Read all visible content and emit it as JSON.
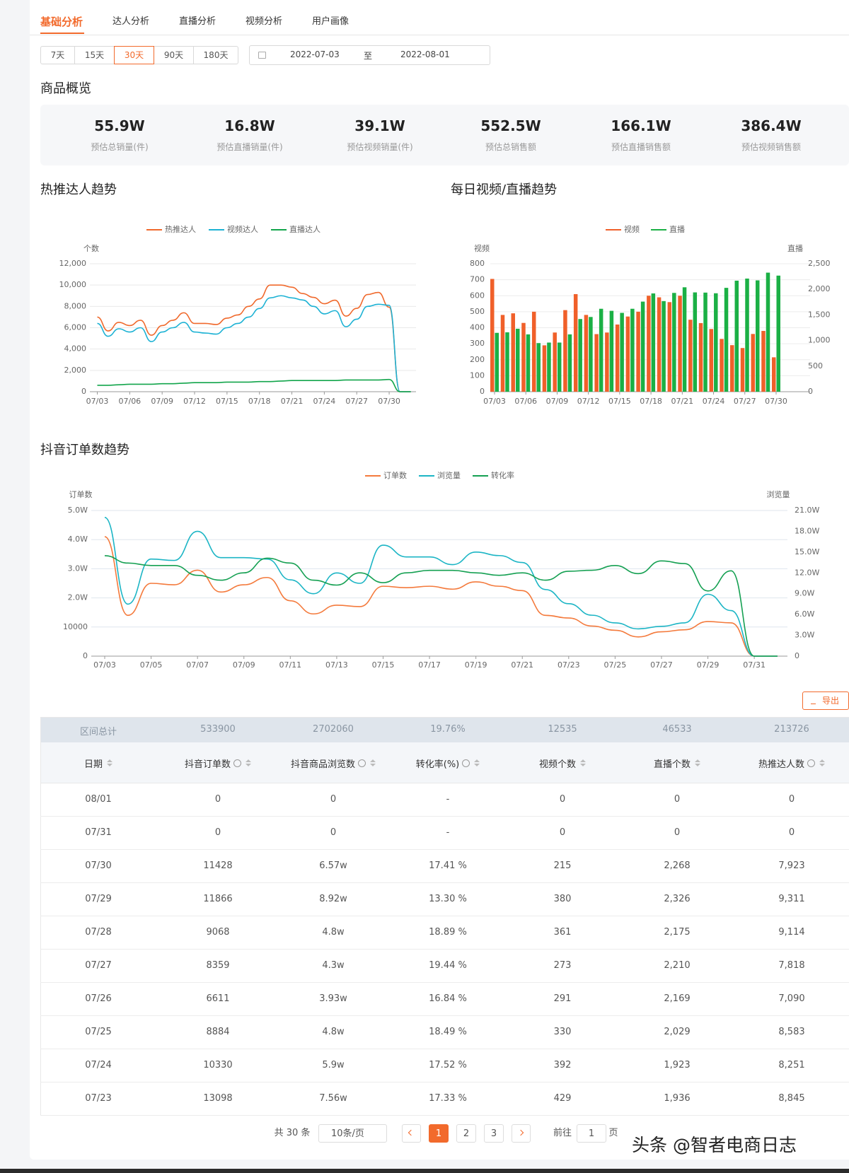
{
  "tabs": [
    "基础分析",
    "达人分析",
    "直播分析",
    "视频分析",
    "用户画像"
  ],
  "active_tab": 0,
  "range_buttons": [
    "7天",
    "15天",
    "30天",
    "90天",
    "180天"
  ],
  "active_range": 2,
  "date_range": {
    "start": "2022-07-03",
    "separator": "至",
    "end": "2022-08-01"
  },
  "overview": {
    "title": "商品概览",
    "items": [
      {
        "value": "55.9W",
        "label": "预估总销量(件)"
      },
      {
        "value": "16.8W",
        "label": "预估直播销量(件)"
      },
      {
        "value": "39.1W",
        "label": "预估视频销量(件)"
      },
      {
        "value": "552.5W",
        "label": "预估总销售额"
      },
      {
        "value": "166.1W",
        "label": "预估直播销售额"
      },
      {
        "value": "386.4W",
        "label": "预估视频销售额"
      }
    ]
  },
  "chart_data": [
    {
      "type": "line",
      "title": "热推达人趋势",
      "y_label": "个数",
      "categories": [
        "07/03",
        null,
        null,
        "07/06",
        null,
        null,
        "07/09",
        null,
        null,
        "07/12",
        null,
        null,
        "07/15",
        null,
        null,
        "07/18",
        null,
        null,
        "07/21",
        null,
        null,
        "07/24",
        null,
        null,
        "07/27",
        null,
        null,
        "07/30",
        null,
        null
      ],
      "series": [
        {
          "name": "热推达人",
          "color": "#f0692c",
          "values": [
            7000,
            5700,
            6500,
            6200,
            6700,
            5300,
            6200,
            6700,
            7400,
            6400,
            6400,
            6300,
            6900,
            7200,
            8000,
            8700,
            10000,
            10000,
            9800,
            9200,
            8845,
            8251,
            8583,
            7090,
            7818,
            9114,
            9311,
            7923,
            0,
            0
          ]
        },
        {
          "name": "视频达人",
          "color": "#1db2d4",
          "values": [
            6400,
            5200,
            5900,
            5600,
            6000,
            4700,
            5600,
            6000,
            6500,
            5600,
            5500,
            5400,
            6000,
            6400,
            7000,
            7800,
            8800,
            9000,
            8800,
            8600,
            8000,
            7300,
            7600,
            6100,
            6800,
            8000,
            8200,
            8100,
            0,
            0
          ]
        },
        {
          "name": "直播达人",
          "color": "#12a54b",
          "values": [
            600,
            600,
            650,
            700,
            700,
            700,
            750,
            750,
            800,
            850,
            850,
            850,
            900,
            900,
            900,
            950,
            950,
            1000,
            1050,
            1050,
            1050,
            1050,
            1050,
            1100,
            1100,
            1100,
            1100,
            1150,
            0,
            0
          ]
        }
      ],
      "ylim": [
        0,
        12000
      ],
      "yticks": [
        0,
        {
          "value": 2000,
          "label": "2,000"
        },
        {
          "value": 4000,
          "label": "4,000"
        },
        {
          "value": 6000,
          "label": "6,000"
        },
        {
          "value": 8000,
          "label": "8,000"
        },
        {
          "value": 10000,
          "label": "10,000"
        },
        {
          "value": 12000,
          "label": "12,000"
        }
      ],
      "grid": true,
      "legend": "top"
    },
    {
      "type": "bar",
      "title": "每日视频/直播趋势",
      "y_label": "视频",
      "y2_label": "直播",
      "categories": [
        "07/03",
        null,
        null,
        "07/06",
        null,
        null,
        "07/09",
        null,
        null,
        "07/12",
        null,
        null,
        "07/15",
        null,
        null,
        "07/18",
        null,
        null,
        "07/21",
        null,
        null,
        "07/24",
        null,
        null,
        "07/27",
        null,
        null,
        "07/30"
      ],
      "series": [
        {
          "name": "视频",
          "color": "#f0602a",
          "values": [
            705,
            480,
            490,
            430,
            500,
            290,
            370,
            510,
            610,
            480,
            360,
            370,
            420,
            470,
            500,
            600,
            590,
            560,
            600,
            450,
            429,
            392,
            330,
            291,
            273,
            361,
            380,
            215
          ]
        },
        {
          "name": "直播",
          "color": "#1bb045",
          "axis": "y2",
          "values": [
            1150,
            1160,
            1230,
            1120,
            950,
            960,
            960,
            1120,
            1420,
            1460,
            1620,
            1580,
            1540,
            1620,
            1760,
            1920,
            1770,
            1930,
            2040,
            1940,
            1936,
            1923,
            2029,
            2169,
            2210,
            2175,
            2326,
            2268
          ]
        }
      ],
      "ylim": [
        0,
        800
      ],
      "yticks": [
        0,
        100,
        200,
        300,
        400,
        500,
        600,
        700,
        800
      ],
      "y2lim": [
        0,
        2500
      ],
      "y2ticks": [
        0,
        500,
        {
          "value": 1000,
          "label": "1,000"
        },
        {
          "value": 1500,
          "label": "1,500"
        },
        {
          "value": 2000,
          "label": "2,000"
        },
        {
          "value": 2500,
          "label": "2,500"
        }
      ],
      "grid": true,
      "legend": "top"
    },
    {
      "type": "line",
      "title": "抖音订单数趋势",
      "y_label": "订单数",
      "y2_label": "浏览量",
      "categories": [
        "07/03",
        null,
        "07/05",
        null,
        "07/07",
        null,
        "07/09",
        null,
        "07/11",
        null,
        "07/13",
        null,
        "07/15",
        null,
        "07/17",
        null,
        "07/19",
        null,
        "07/21",
        null,
        "07/23",
        null,
        "07/25",
        null,
        "07/27",
        null,
        "07/29",
        null,
        "07/31",
        null
      ],
      "series": [
        {
          "name": "订单数",
          "color": "#f47a3c",
          "values": [
            41000,
            14000,
            25000,
            24500,
            29500,
            22000,
            24500,
            27000,
            19000,
            14500,
            17500,
            17000,
            24000,
            23500,
            24000,
            23000,
            25500,
            24000,
            22500,
            14000,
            13098,
            10330,
            8884,
            6611,
            8359,
            9068,
            11866,
            11428,
            0,
            0
          ]
        },
        {
          "name": "浏览量",
          "color": "#1cb5c5",
          "axis": "y2",
          "values": [
            200000,
            75000,
            140000,
            138000,
            180000,
            142000,
            142000,
            140000,
            110000,
            90000,
            120000,
            105000,
            160000,
            143000,
            143000,
            132000,
            150000,
            145000,
            135000,
            96000,
            75600,
            59000,
            48000,
            39300,
            43000,
            48000,
            89200,
            65700,
            0,
            0
          ]
        },
        {
          "name": "转化率",
          "color": "#15a052",
          "axis": "y3",
          "values": [
            20.5,
            19,
            18.5,
            18.5,
            16.5,
            15.5,
            17,
            20,
            19,
            15.5,
            14.5,
            17,
            15,
            17,
            17.5,
            17.5,
            17,
            16.5,
            17,
            15.5,
            17.33,
            17.52,
            18.49,
            16.84,
            19.44,
            18.89,
            13.3,
            17.41,
            0,
            0
          ]
        }
      ],
      "ylim": [
        0,
        50000
      ],
      "yticks": [
        0,
        10000,
        {
          "value": 20000,
          "label": "2.0W"
        },
        {
          "value": 30000,
          "label": "3.0W"
        },
        {
          "value": 40000,
          "label": "4.0W"
        },
        {
          "value": 50000,
          "label": "5.0W"
        }
      ],
      "y2lim": [
        0,
        210000
      ],
      "y2ticks": [
        0,
        {
          "value": 30000,
          "label": "3.0W"
        },
        {
          "value": 60000,
          "label": "6.0W"
        },
        {
          "value": 90000,
          "label": "9.0W"
        },
        {
          "value": 120000,
          "label": "12.0W"
        },
        {
          "value": 150000,
          "label": "15.0W"
        },
        {
          "value": 180000,
          "label": "18.0W"
        },
        {
          "value": 210000,
          "label": "21.0W"
        }
      ],
      "grid": true,
      "legend": "top"
    }
  ],
  "export_button": "导出",
  "table": {
    "summary": [
      "区间总计",
      "533900",
      "2702060",
      "19.76%",
      "12535",
      "46533",
      "213726"
    ],
    "headers": [
      "日期",
      "抖音订单数",
      "抖音商品浏览数",
      "转化率(%)",
      "视频个数",
      "直播个数",
      "热推达人数"
    ],
    "rows": [
      [
        "08/01",
        "0",
        "0",
        "-",
        "0",
        "0",
        "0"
      ],
      [
        "07/31",
        "0",
        "0",
        "-",
        "0",
        "0",
        "0"
      ],
      [
        "07/30",
        "11428",
        "6.57w",
        "17.41 %",
        "215",
        "2,268",
        "7,923"
      ],
      [
        "07/29",
        "11866",
        "8.92w",
        "13.30 %",
        "380",
        "2,326",
        "9,311"
      ],
      [
        "07/28",
        "9068",
        "4.8w",
        "18.89 %",
        "361",
        "2,175",
        "9,114"
      ],
      [
        "07/27",
        "8359",
        "4.3w",
        "19.44 %",
        "273",
        "2,210",
        "7,818"
      ],
      [
        "07/26",
        "6611",
        "3.93w",
        "16.84 %",
        "291",
        "2,169",
        "7,090"
      ],
      [
        "07/25",
        "8884",
        "4.8w",
        "18.49 %",
        "330",
        "2,029",
        "8,583"
      ],
      [
        "07/24",
        "10330",
        "5.9w",
        "17.52 %",
        "392",
        "1,923",
        "8,251"
      ],
      [
        "07/23",
        "13098",
        "7.56w",
        "17.33 %",
        "429",
        "1,936",
        "8,845"
      ]
    ]
  },
  "pagination": {
    "total": "共 30 条",
    "page_size": "10条/页",
    "pages": [
      "1",
      "2",
      "3"
    ],
    "active_page": 0,
    "goto_label": "前往",
    "goto_value": "1",
    "goto_suffix": "页"
  },
  "watermark": "头条 @智者电商日志"
}
